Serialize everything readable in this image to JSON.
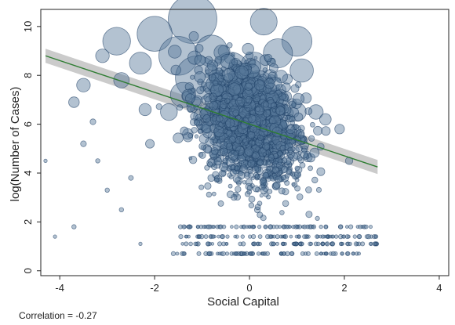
{
  "chart_data": {
    "type": "scatter",
    "xlabel": "Social Capital",
    "ylabel": "log(Number of Cases)",
    "xlim": [
      -4.4,
      4.2
    ],
    "ylim": [
      -0.2,
      10.7
    ],
    "xticks": [
      -4,
      -2,
      0,
      2,
      4
    ],
    "yticks": [
      0,
      2,
      4,
      6,
      8,
      10
    ],
    "grid": false,
    "legend": "none",
    "annotation": "Correlation = -0.27",
    "fit_line": {
      "x": [
        -4.3,
        2.7
      ],
      "y": [
        8.8,
        4.25
      ]
    },
    "colors": {
      "marker_fill": "#56789a",
      "marker_edge": "#1e3f66",
      "fit_line": "#2e7d32",
      "ci_band": "#a9a9a9"
    },
    "points": [
      {
        "x": -1.2,
        "y": 10.3,
        "size": 10.0
      },
      {
        "x": -2.0,
        "y": 9.7,
        "size": 7.2
      },
      {
        "x": -2.8,
        "y": 9.4,
        "size": 5.7
      },
      {
        "x": 0.3,
        "y": 10.2,
        "size": 5.5
      },
      {
        "x": 1.0,
        "y": 9.4,
        "size": 6.2
      },
      {
        "x": -1.5,
        "y": 8.8,
        "size": 8.0
      },
      {
        "x": -0.8,
        "y": 9.0,
        "size": 6.5
      },
      {
        "x": 0.6,
        "y": 8.9,
        "size": 6.0
      },
      {
        "x": -2.3,
        "y": 8.5,
        "size": 4.5
      },
      {
        "x": -0.4,
        "y": 8.2,
        "size": 7.5
      },
      {
        "x": 0.1,
        "y": 8.4,
        "size": 5.5
      },
      {
        "x": 1.1,
        "y": 8.2,
        "size": 4.8
      },
      {
        "x": -3.1,
        "y": 8.8,
        "size": 2.8
      },
      {
        "x": -2.7,
        "y": 7.8,
        "size": 3.2
      },
      {
        "x": -3.5,
        "y": 7.6,
        "size": 2.8
      },
      {
        "x": -3.7,
        "y": 6.9,
        "size": 2.2
      },
      {
        "x": -1.1,
        "y": 7.9,
        "size": 9.0
      },
      {
        "x": 0.2,
        "y": 7.6,
        "size": 6.0
      },
      {
        "x": -0.6,
        "y": 7.2,
        "size": 5.0
      },
      {
        "x": -1.4,
        "y": 7.2,
        "size": 5.2
      },
      {
        "x": 1.4,
        "y": 6.5,
        "size": 3.0
      },
      {
        "x": 1.9,
        "y": 5.8,
        "size": 2.0
      },
      {
        "x": -2.2,
        "y": 6.6,
        "size": 2.5
      },
      {
        "x": 0.6,
        "y": 7.0,
        "size": 4.5
      },
      {
        "x": -0.1,
        "y": 6.6,
        "size": 4.0
      },
      {
        "x": -1.7,
        "y": 6.5,
        "size": 3.5
      },
      {
        "x": 1.0,
        "y": 6.5,
        "size": 3.8
      },
      {
        "x": -1.0,
        "y": 6.3,
        "size": 3.5
      },
      {
        "x": 0.4,
        "y": 6.1,
        "size": 3.0
      },
      {
        "x": 1.6,
        "y": 6.2,
        "size": 2.4
      },
      {
        "x": -0.3,
        "y": 5.7,
        "size": 2.5
      },
      {
        "x": -1.3,
        "y": 5.6,
        "size": 2.2
      },
      {
        "x": 0.9,
        "y": 5.4,
        "size": 2.0
      },
      {
        "x": -2.1,
        "y": 5.2,
        "size": 1.8
      },
      {
        "x": 2.1,
        "y": 4.5,
        "size": 1.5
      },
      {
        "x": -3.5,
        "y": 5.2,
        "size": 1.2
      },
      {
        "x": -3.3,
        "y": 6.1,
        "size": 1.2
      },
      {
        "x": -4.3,
        "y": 4.5,
        "size": 0.7
      },
      {
        "x": -4.1,
        "y": 1.4,
        "size": 0.7
      },
      {
        "x": -3.7,
        "y": 1.8,
        "size": 0.9
      },
      {
        "x": -3.2,
        "y": 4.5,
        "size": 0.9
      },
      {
        "x": -3.0,
        "y": 3.3,
        "size": 0.9
      },
      {
        "x": -2.7,
        "y": 2.5,
        "size": 0.9
      },
      {
        "x": -2.5,
        "y": 3.8,
        "size": 1.0
      },
      {
        "x": -2.3,
        "y": 1.1,
        "size": 0.7
      }
    ]
  },
  "note": "Correlation = -0.27"
}
